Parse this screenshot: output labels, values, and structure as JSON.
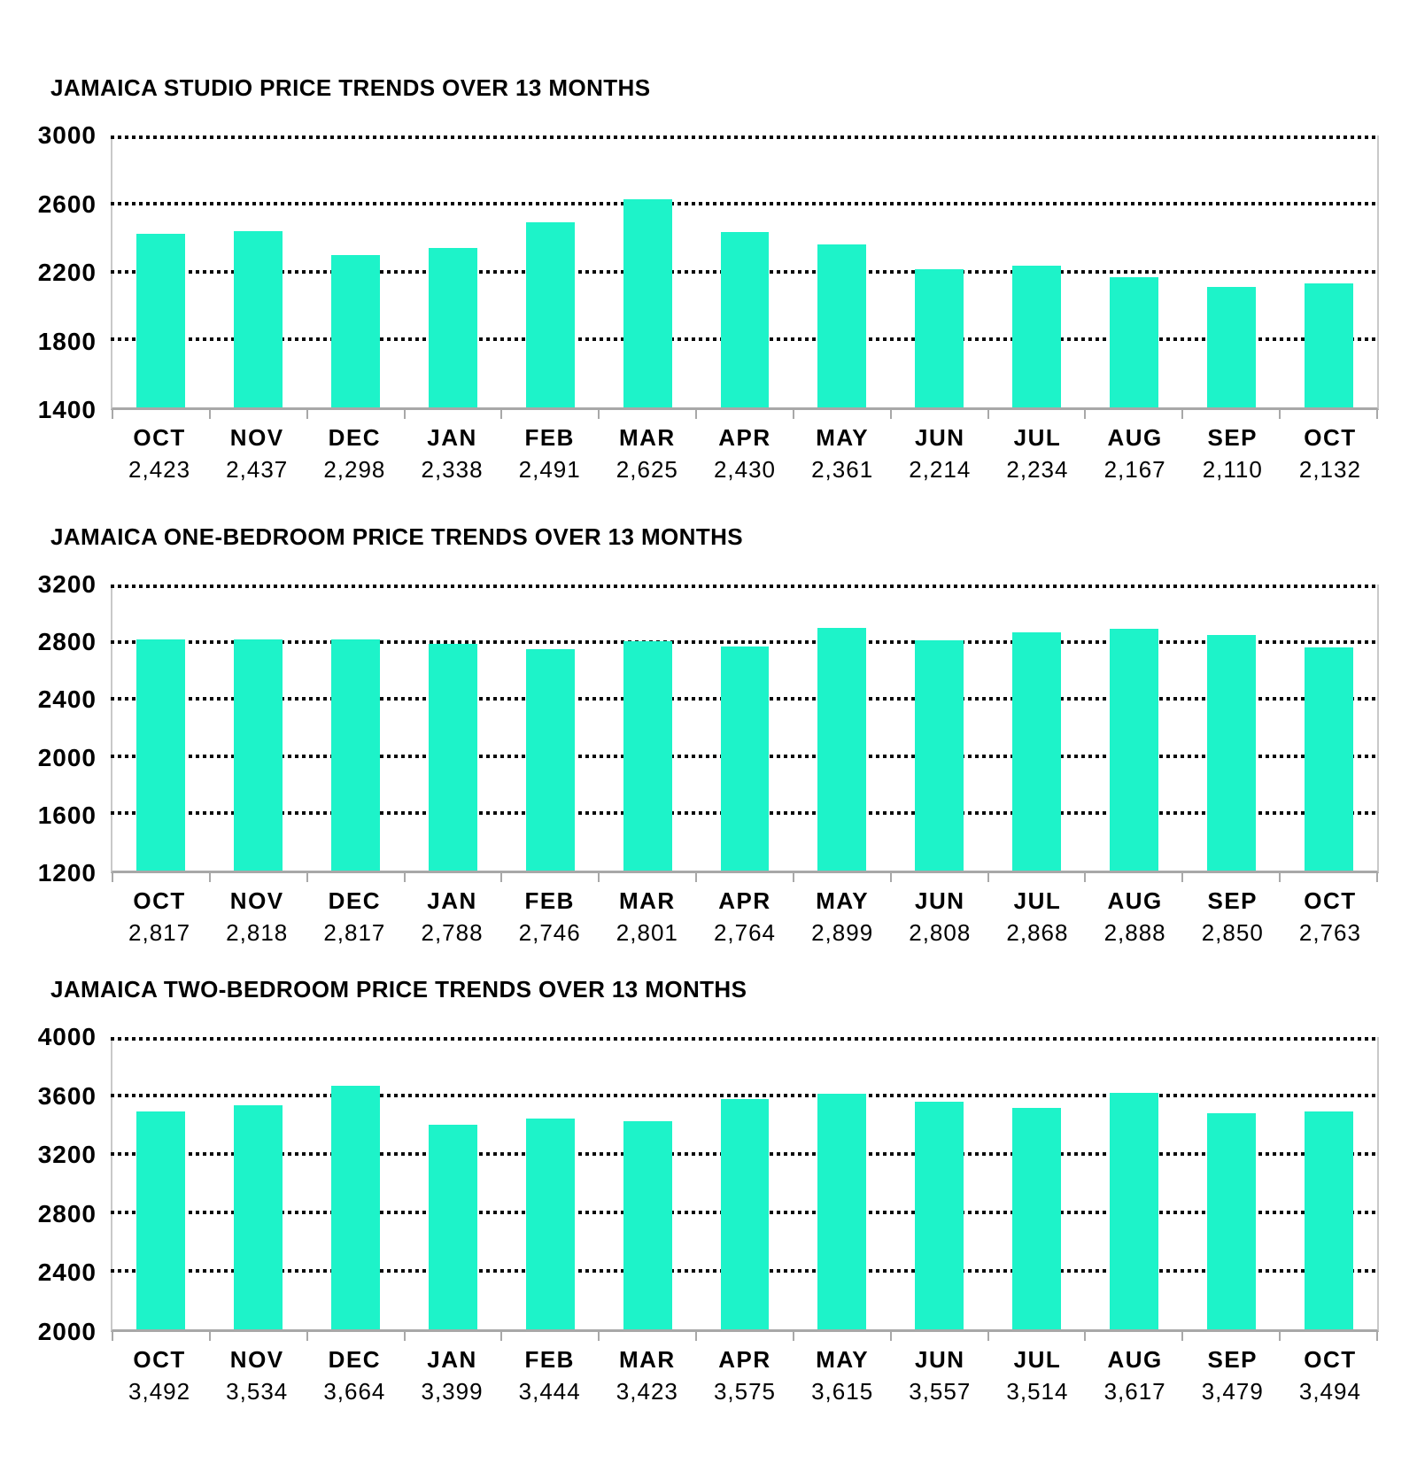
{
  "page": {
    "background": "#ffffff"
  },
  "style": {
    "bar_color": "#1df3c9",
    "gridline_color": "#0a0a0a",
    "axis_line_color": "#c9c9c9",
    "baseline_color": "#a8a8a8",
    "text_color": "#000000"
  },
  "chart_data": [
    {
      "type": "bar",
      "title": "JAMAICA STUDIO PRICE TRENDS OVER 13 MONTHS",
      "categories": [
        "OCT",
        "NOV",
        "DEC",
        "JAN",
        "FEB",
        "MAR",
        "APR",
        "MAY",
        "JUN",
        "JUL",
        "AUG",
        "SEP",
        "OCT"
      ],
      "values": [
        2423,
        2437,
        2298,
        2338,
        2491,
        2625,
        2430,
        2361,
        2214,
        2234,
        2167,
        2110,
        2132
      ],
      "value_labels": [
        "2,423",
        "2,437",
        "2,298",
        "2,338",
        "2,491",
        "2,625",
        "2,430",
        "2,361",
        "2,214",
        "2,234",
        "2,167",
        "2,110",
        "2,132"
      ],
      "xlabel": "",
      "ylabel": "",
      "ylim": [
        1400,
        3000
      ],
      "yticks": [
        1400,
        1800,
        2200,
        2600,
        3000
      ],
      "grid": "horizontal dotted",
      "legend": "none"
    },
    {
      "type": "bar",
      "title": "JAMAICA ONE-BEDROOM PRICE TRENDS OVER 13 MONTHS",
      "categories": [
        "OCT",
        "NOV",
        "DEC",
        "JAN",
        "FEB",
        "MAR",
        "APR",
        "MAY",
        "JUN",
        "JUL",
        "AUG",
        "SEP",
        "OCT"
      ],
      "values": [
        2817,
        2818,
        2817,
        2788,
        2746,
        2801,
        2764,
        2899,
        2808,
        2868,
        2888,
        2850,
        2763
      ],
      "value_labels": [
        "2,817",
        "2,818",
        "2,817",
        "2,788",
        "2,746",
        "2,801",
        "2,764",
        "2,899",
        "2,808",
        "2,868",
        "2,888",
        "2,850",
        "2,763"
      ],
      "xlabel": "",
      "ylabel": "",
      "ylim": [
        1200,
        3200
      ],
      "yticks": [
        1200,
        1600,
        2000,
        2400,
        2800,
        3200
      ],
      "grid": "horizontal dotted",
      "legend": "none"
    },
    {
      "type": "bar",
      "title": "JAMAICA TWO-BEDROOM PRICE TRENDS OVER 13 MONTHS",
      "categories": [
        "OCT",
        "NOV",
        "DEC",
        "JAN",
        "FEB",
        "MAR",
        "APR",
        "MAY",
        "JUN",
        "JUL",
        "AUG",
        "SEP",
        "OCT"
      ],
      "values": [
        3492,
        3534,
        3664,
        3399,
        3444,
        3423,
        3575,
        3615,
        3557,
        3514,
        3617,
        3479,
        3494
      ],
      "value_labels": [
        "3,492",
        "3,534",
        "3,664",
        "3,399",
        "3,444",
        "3,423",
        "3,575",
        "3,615",
        "3,557",
        "3,514",
        "3,617",
        "3,479",
        "3,494"
      ],
      "xlabel": "",
      "ylabel": "",
      "ylim": [
        2000,
        4000
      ],
      "yticks": [
        2000,
        2400,
        2800,
        3200,
        3600,
        4000
      ],
      "grid": "horizontal dotted",
      "legend": "none"
    }
  ]
}
